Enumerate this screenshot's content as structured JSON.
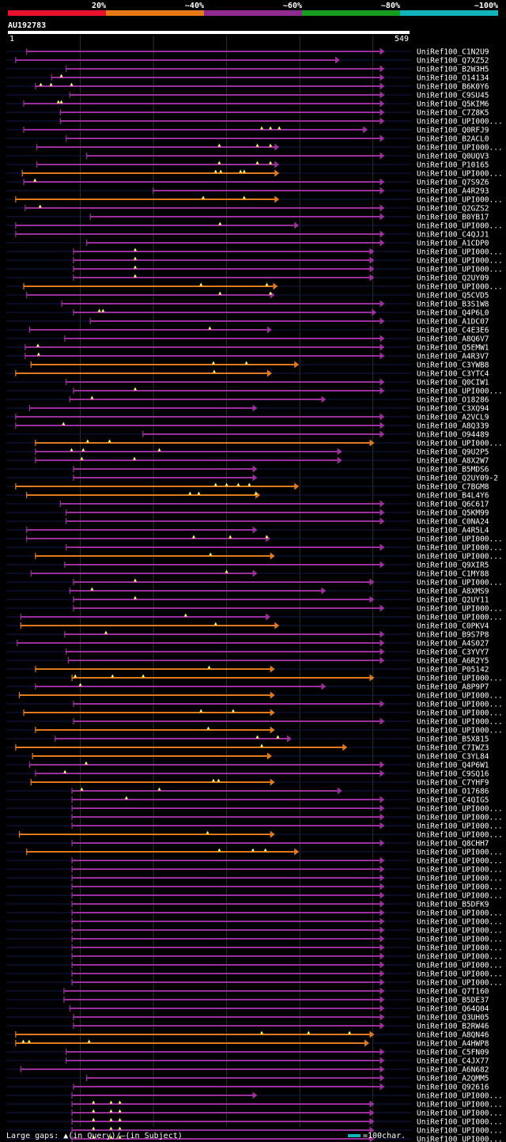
{
  "chart_data": {
    "type": "alignment-overview",
    "query_id": "AU192783",
    "query_length": 549,
    "axis": {
      "start_label": "1",
      "end_label": "549"
    },
    "identity_scale": [
      {
        "label": "20%",
        "color": "#e8112d"
      },
      {
        "label": "~40%",
        "color": "#e67817"
      },
      {
        "label": "~60%",
        "color": "#8f2a8f"
      },
      {
        "label": "~80%",
        "color": "#179c1f"
      },
      {
        "label": "~100%",
        "color": "#11b3b8"
      }
    ],
    "hits": [
      {
        "label": "UniRef100_C1N2U9",
        "s": 26,
        "e": 516,
        "c": "p",
        "g": []
      },
      {
        "label": "UniRef100_Q7XZ52",
        "s": 11,
        "e": 455,
        "c": "p",
        "g": []
      },
      {
        "label": "UniRef100_B2W3H5",
        "s": 80,
        "e": 516,
        "c": "p",
        "g": []
      },
      {
        "label": "UniRef100_O14134",
        "s": 60,
        "e": 516,
        "c": "p",
        "g": [
          74
        ]
      },
      {
        "label": "UniRef100_B6K0Y6",
        "s": 38,
        "e": 516,
        "c": "p",
        "g": [
          46,
          60,
          88
        ]
      },
      {
        "label": "UniRef100_C9SU45",
        "s": 85,
        "e": 516,
        "c": "p",
        "g": []
      },
      {
        "label": "UniRef100_Q5KIM6",
        "s": 22,
        "e": 516,
        "c": "p",
        "g": [
          70,
          74
        ]
      },
      {
        "label": "UniRef100_C7Z8K5",
        "s": 72,
        "e": 516,
        "c": "p",
        "g": []
      },
      {
        "label": "UniRef100_UPI000...",
        "s": 72,
        "e": 516,
        "c": "p",
        "g": []
      },
      {
        "label": "UniRef100_Q0RFJ9",
        "s": 22,
        "e": 493,
        "c": "p",
        "g": [
          348,
          360,
          372
        ]
      },
      {
        "label": "UniRef100_B2ACL0",
        "s": 80,
        "e": 516,
        "c": "p",
        "g": []
      },
      {
        "label": "UniRef100_UPI000...",
        "s": 40,
        "e": 372,
        "c": "p",
        "g": [
          290,
          342,
          360
        ]
      },
      {
        "label": "UniRef100_Q0UQV3",
        "s": 108,
        "e": 516,
        "c": "p",
        "g": []
      },
      {
        "label": "UniRef100_P10165",
        "s": 40,
        "e": 372,
        "c": "p",
        "g": [
          290,
          342,
          360
        ]
      },
      {
        "label": "UniRef100_UPI000...",
        "s": 20,
        "e": 372,
        "c": "o",
        "g": [
          285,
          292,
          319,
          324
        ]
      },
      {
        "label": "UniRef100_Q7S9Z6",
        "s": 22,
        "e": 516,
        "c": "p",
        "g": [
          38
        ]
      },
      {
        "label": "UniRef100_A4R293",
        "s": 199,
        "e": 516,
        "c": "p",
        "g": []
      },
      {
        "label": "UniRef100_UPI000...",
        "s": 11,
        "e": 372,
        "c": "o",
        "g": [
          268,
          324
        ]
      },
      {
        "label": "UniRef100_Q2GZS2",
        "s": 24,
        "e": 516,
        "c": "p",
        "g": [
          45
        ]
      },
      {
        "label": "UniRef100_B0YB17",
        "s": 113,
        "e": 516,
        "c": "p",
        "g": []
      },
      {
        "label": "UniRef100_UPI000...",
        "s": 11,
        "e": 399,
        "c": "p",
        "g": [
          291
        ]
      },
      {
        "label": "UniRef100_C4QJJ1",
        "s": 11,
        "e": 516,
        "c": "p",
        "g": []
      },
      {
        "label": "UniRef100_A1CDP0",
        "s": 108,
        "e": 516,
        "c": "p",
        "g": []
      },
      {
        "label": "UniRef100_UPI000...",
        "s": 90,
        "e": 502,
        "c": "p",
        "g": [
          175
        ]
      },
      {
        "label": "UniRef100_UPI000...",
        "s": 90,
        "e": 502,
        "c": "p",
        "g": [
          175
        ]
      },
      {
        "label": "UniRef100_UPI000...",
        "s": 90,
        "e": 502,
        "c": "p",
        "g": [
          175
        ]
      },
      {
        "label": "UniRef100_Q2UY09",
        "s": 90,
        "e": 502,
        "c": "p",
        "g": [
          175
        ]
      },
      {
        "label": "UniRef100_UPI000...",
        "s": 22,
        "e": 370,
        "c": "o",
        "g": [
          265,
          355
        ]
      },
      {
        "label": "UniRef100_Q5CVD5",
        "s": 26,
        "e": 366,
        "c": "p",
        "g": [
          291,
          360
        ]
      },
      {
        "label": "UniRef100_B3S1W8",
        "s": 74,
        "e": 516,
        "c": "p",
        "g": []
      },
      {
        "label": "UniRef100_Q4P6L0",
        "s": 90,
        "e": 505,
        "c": "p",
        "g": [
          126,
          131
        ]
      },
      {
        "label": "UniRef100_A1DC07",
        "s": 113,
        "e": 516,
        "c": "p",
        "g": []
      },
      {
        "label": "UniRef100_C4E3E6",
        "s": 30,
        "e": 362,
        "c": "p",
        "g": [
          277
        ]
      },
      {
        "label": "UniRef100_A8Q6V7",
        "s": 78,
        "e": 516,
        "c": "p",
        "g": []
      },
      {
        "label": "UniRef100_Q5EMW1",
        "s": 24,
        "e": 516,
        "c": "p",
        "g": [
          42
        ]
      },
      {
        "label": "UniRef100_A4R3V7",
        "s": 24,
        "e": 516,
        "c": "p",
        "g": [
          43
        ]
      },
      {
        "label": "UniRef100_C3YWB8",
        "s": 32,
        "e": 399,
        "c": "o",
        "g": [
          282,
          327
        ]
      },
      {
        "label": "UniRef100_C3YTC4",
        "s": 11,
        "e": 362,
        "c": "o",
        "g": [
          283
        ]
      },
      {
        "label": "UniRef100_Q0CIW1",
        "s": 80,
        "e": 516,
        "c": "p",
        "g": []
      },
      {
        "label": "UniRef100_UPI000...",
        "s": 90,
        "e": 516,
        "c": "p",
        "g": [
          175
        ]
      },
      {
        "label": "UniRef100_O18286",
        "s": 85,
        "e": 436,
        "c": "p",
        "g": [
          116
        ]
      },
      {
        "label": "UniRef100_C3XQ94",
        "s": 30,
        "e": 342,
        "c": "p",
        "g": []
      },
      {
        "label": "UniRef100_A2VCL9",
        "s": 11,
        "e": 516,
        "c": "p",
        "g": []
      },
      {
        "label": "UniRef100_A8Q339",
        "s": 11,
        "e": 516,
        "c": "p",
        "g": [
          77
        ]
      },
      {
        "label": "UniRef100_O94489",
        "s": 185,
        "e": 516,
        "c": "p",
        "g": []
      },
      {
        "label": "UniRef100_UPI000...",
        "s": 38,
        "e": 502,
        "c": "o",
        "g": [
          110,
          140
        ]
      },
      {
        "label": "UniRef100_Q9U2P5",
        "s": 38,
        "e": 458,
        "c": "p",
        "g": [
          88,
          104,
          208
        ]
      },
      {
        "label": "UniRef100_A8X2W7",
        "s": 38,
        "e": 458,
        "c": "p",
        "g": [
          102,
          174
        ]
      },
      {
        "label": "UniRef100_B5MDS6",
        "s": 90,
        "e": 342,
        "c": "p",
        "g": []
      },
      {
        "label": "UniRef100_Q2UY09-2",
        "s": 90,
        "e": 342,
        "c": "p",
        "g": []
      },
      {
        "label": "UniRef100_C7BGM8",
        "s": 11,
        "e": 399,
        "c": "o",
        "g": [
          285,
          300,
          316,
          331
        ]
      },
      {
        "label": "UniRef100_B4L4Y6",
        "s": 26,
        "e": 346,
        "c": "o",
        "g": [
          250,
          262,
          340
        ]
      },
      {
        "label": "UniRef100_Q6C617",
        "s": 72,
        "e": 516,
        "c": "p",
        "g": []
      },
      {
        "label": "UniRef100_Q5KM99",
        "s": 80,
        "e": 516,
        "c": "p",
        "g": []
      },
      {
        "label": "UniRef100_C0NA24",
        "s": 80,
        "e": 516,
        "c": "p",
        "g": []
      },
      {
        "label": "UniRef100_A4R5L4",
        "s": 26,
        "e": 342,
        "c": "p",
        "g": []
      },
      {
        "label": "UniRef100_UPI000...",
        "s": 26,
        "e": 360,
        "c": "p",
        "g": [
          255,
          305,
          355
        ]
      },
      {
        "label": "UniRef100_UPI000...",
        "s": 80,
        "e": 516,
        "c": "p",
        "g": []
      },
      {
        "label": "UniRef100_UPI000...",
        "s": 38,
        "e": 366,
        "c": "o",
        "g": [
          278
        ]
      },
      {
        "label": "UniRef100_Q9XIR5",
        "s": 78,
        "e": 516,
        "c": "p",
        "g": []
      },
      {
        "label": "UniRef100_C1MY88",
        "s": 32,
        "e": 342,
        "c": "p",
        "g": [
          300
        ]
      },
      {
        "label": "UniRef100_UPI000...",
        "s": 90,
        "e": 502,
        "c": "p",
        "g": [
          175
        ]
      },
      {
        "label": "UniRef100_A8XMS9",
        "s": 85,
        "e": 436,
        "c": "p",
        "g": [
          116
        ]
      },
      {
        "label": "UniRef100_Q2UY11",
        "s": 90,
        "e": 502,
        "c": "p",
        "g": [
          175
        ]
      },
      {
        "label": "UniRef100_UPI000...",
        "s": 90,
        "e": 516,
        "c": "p",
        "g": []
      },
      {
        "label": "UniRef100_UPI000...",
        "s": 18,
        "e": 360,
        "c": "p",
        "g": [
          244
        ]
      },
      {
        "label": "UniRef100_C0PKV4",
        "s": 18,
        "e": 372,
        "c": "o",
        "g": [
          285
        ]
      },
      {
        "label": "UniRef100_B9S7P8",
        "s": 78,
        "e": 516,
        "c": "p",
        "g": [
          135
        ]
      },
      {
        "label": "UniRef100_A4S027",
        "s": 13,
        "e": 516,
        "c": "p",
        "g": []
      },
      {
        "label": "UniRef100_C3YVY7",
        "s": 80,
        "e": 516,
        "c": "p",
        "g": []
      },
      {
        "label": "UniRef100_A6R2Y5",
        "s": 83,
        "e": 516,
        "c": "p",
        "g": []
      },
      {
        "label": "UniRef100_P05142",
        "s": 38,
        "e": 366,
        "c": "o",
        "g": [
          276
        ]
      },
      {
        "label": "UniRef100_UPI000...",
        "s": 88,
        "e": 502,
        "c": "o",
        "g": [
          93,
          144,
          186
        ]
      },
      {
        "label": "UniRef100_A8P9P7",
        "s": 38,
        "e": 436,
        "c": "p",
        "g": [
          100
        ]
      },
      {
        "label": "UniRef100_UPI000...",
        "s": 16,
        "e": 366,
        "c": "o",
        "g": []
      },
      {
        "label": "UniRef100_UPI000...",
        "s": 90,
        "e": 516,
        "c": "p",
        "g": []
      },
      {
        "label": "UniRef100_UPI000...",
        "s": 22,
        "e": 366,
        "c": "o",
        "g": [
          265,
          309
        ]
      },
      {
        "label": "UniRef100_UPI000...",
        "s": 90,
        "e": 516,
        "c": "p",
        "g": []
      },
      {
        "label": "UniRef100_UPI000...",
        "s": 38,
        "e": 366,
        "c": "o",
        "g": [
          275
        ]
      },
      {
        "label": "UniRef100_B5X815",
        "s": 65,
        "e": 389,
        "c": "p",
        "g": [
          342,
          370
        ]
      },
      {
        "label": "UniRef100_C7IWZ3",
        "s": 11,
        "e": 465,
        "c": "o",
        "g": [
          348
        ]
      },
      {
        "label": "UniRef100_C3YL84",
        "s": 34,
        "e": 362,
        "c": "o",
        "g": []
      },
      {
        "label": "UniRef100_Q4P6W1",
        "s": 30,
        "e": 516,
        "c": "p",
        "g": [
          108
        ]
      },
      {
        "label": "UniRef100_C9SQ16",
        "s": 38,
        "e": 516,
        "c": "p",
        "g": [
          79
        ]
      },
      {
        "label": "UniRef100_C7YHF9",
        "s": 32,
        "e": 366,
        "c": "o",
        "g": [
          282,
          289
        ]
      },
      {
        "label": "UniRef100_O17686",
        "s": 88,
        "e": 458,
        "c": "p",
        "g": [
          102,
          208
        ]
      },
      {
        "label": "UniRef100_C4QIG5",
        "s": 88,
        "e": 516,
        "c": "p",
        "g": [
          163
        ]
      },
      {
        "label": "UniRef100_UPI000...",
        "s": 88,
        "e": 516,
        "c": "p",
        "g": []
      },
      {
        "label": "UniRef100_UPI000...",
        "s": 88,
        "e": 516,
        "c": "p",
        "g": []
      },
      {
        "label": "UniRef100_UPI000...",
        "s": 88,
        "e": 516,
        "c": "p",
        "g": []
      },
      {
        "label": "UniRef100_UPI000...",
        "s": 16,
        "e": 366,
        "c": "o",
        "g": [
          274
        ]
      },
      {
        "label": "UniRef100_Q8CHH7",
        "s": 88,
        "e": 516,
        "c": "p",
        "g": []
      },
      {
        "label": "UniRef100_UPI000...",
        "s": 26,
        "e": 399,
        "c": "o",
        "g": [
          290,
          336,
          353
        ]
      },
      {
        "label": "UniRef100_UPI000...",
        "s": 88,
        "e": 516,
        "c": "p",
        "g": []
      },
      {
        "label": "UniRef100_UPI000...",
        "s": 88,
        "e": 516,
        "c": "p",
        "g": []
      },
      {
        "label": "UniRef100_UPI000...",
        "s": 88,
        "e": 516,
        "c": "p",
        "g": []
      },
      {
        "label": "UniRef100_UPI000...",
        "s": 88,
        "e": 516,
        "c": "p",
        "g": []
      },
      {
        "label": "UniRef100_UPI000...",
        "s": 88,
        "e": 516,
        "c": "p",
        "g": []
      },
      {
        "label": "UniRef100_B5DFK9",
        "s": 88,
        "e": 516,
        "c": "p",
        "g": []
      },
      {
        "label": "UniRef100_UPI000...",
        "s": 88,
        "e": 516,
        "c": "p",
        "g": []
      },
      {
        "label": "UniRef100_UPI000...",
        "s": 88,
        "e": 516,
        "c": "p",
        "g": []
      },
      {
        "label": "UniRef100_UPI000...",
        "s": 88,
        "e": 516,
        "c": "p",
        "g": []
      },
      {
        "label": "UniRef100_UPI000...",
        "s": 88,
        "e": 516,
        "c": "p",
        "g": []
      },
      {
        "label": "UniRef100_UPI000...",
        "s": 88,
        "e": 516,
        "c": "p",
        "g": []
      },
      {
        "label": "UniRef100_UPI000...",
        "s": 88,
        "e": 516,
        "c": "p",
        "g": []
      },
      {
        "label": "UniRef100_UPI000...",
        "s": 88,
        "e": 516,
        "c": "p",
        "g": []
      },
      {
        "label": "UniRef100_UPI000...",
        "s": 88,
        "e": 516,
        "c": "p",
        "g": []
      },
      {
        "label": "UniRef100_UPI000...",
        "s": 88,
        "e": 516,
        "c": "p",
        "g": []
      },
      {
        "label": "UniRef100_Q7T160",
        "s": 77,
        "e": 516,
        "c": "p",
        "g": []
      },
      {
        "label": "UniRef100_B5DE37",
        "s": 77,
        "e": 516,
        "c": "p",
        "g": []
      },
      {
        "label": "UniRef100_Q64Q04",
        "s": 85,
        "e": 516,
        "c": "p",
        "g": []
      },
      {
        "label": "UniRef100_Q3UH05",
        "s": 90,
        "e": 516,
        "c": "p",
        "g": []
      },
      {
        "label": "UniRef100_B2RW46",
        "s": 90,
        "e": 516,
        "c": "p",
        "g": []
      },
      {
        "label": "UniRef100_A8QN46",
        "s": 11,
        "e": 502,
        "c": "o",
        "g": [
          348,
          412,
          468
        ]
      },
      {
        "label": "UniRef100_A4HWP8",
        "s": 11,
        "e": 495,
        "c": "o",
        "g": [
          22,
          30,
          112
        ]
      },
      {
        "label": "UniRef100_C5FN09",
        "s": 80,
        "e": 516,
        "c": "p",
        "g": []
      },
      {
        "label": "UniRef100_C4JX77",
        "s": 80,
        "e": 516,
        "c": "p",
        "g": []
      },
      {
        "label": "UniRef100_A6N682",
        "s": 18,
        "e": 516,
        "c": "p",
        "g": []
      },
      {
        "label": "UniRef100_A2QMM5",
        "s": 108,
        "e": 516,
        "c": "p",
        "g": []
      },
      {
        "label": "UniRef100_Q92616",
        "s": 90,
        "e": 516,
        "c": "p",
        "g": []
      },
      {
        "label": "UniRef100_UPI000...",
        "s": 88,
        "e": 342,
        "c": "p",
        "g": []
      },
      {
        "label": "UniRef100_UPI000...",
        "s": 88,
        "e": 502,
        "c": "p",
        "g": [
          118,
          142,
          154
        ]
      },
      {
        "label": "UniRef100_UPI000...",
        "s": 88,
        "e": 502,
        "c": "p",
        "g": [
          118,
          142,
          154
        ]
      },
      {
        "label": "UniRef100_UPI000...",
        "s": 88,
        "e": 502,
        "c": "p",
        "g": [
          118,
          142,
          154
        ]
      },
      {
        "label": "UniRef100_UPI000...",
        "s": 88,
        "e": 502,
        "c": "p",
        "g": [
          118,
          142,
          154
        ]
      },
      {
        "label": "UniRef100_UPI000...",
        "s": 88,
        "e": 502,
        "c": "p",
        "g": [
          118,
          142,
          154
        ]
      }
    ],
    "legend": {
      "gaps_text": "Large gaps: ▲(in Query)/—(in Subject)",
      "scale_text": "=100char."
    }
  }
}
